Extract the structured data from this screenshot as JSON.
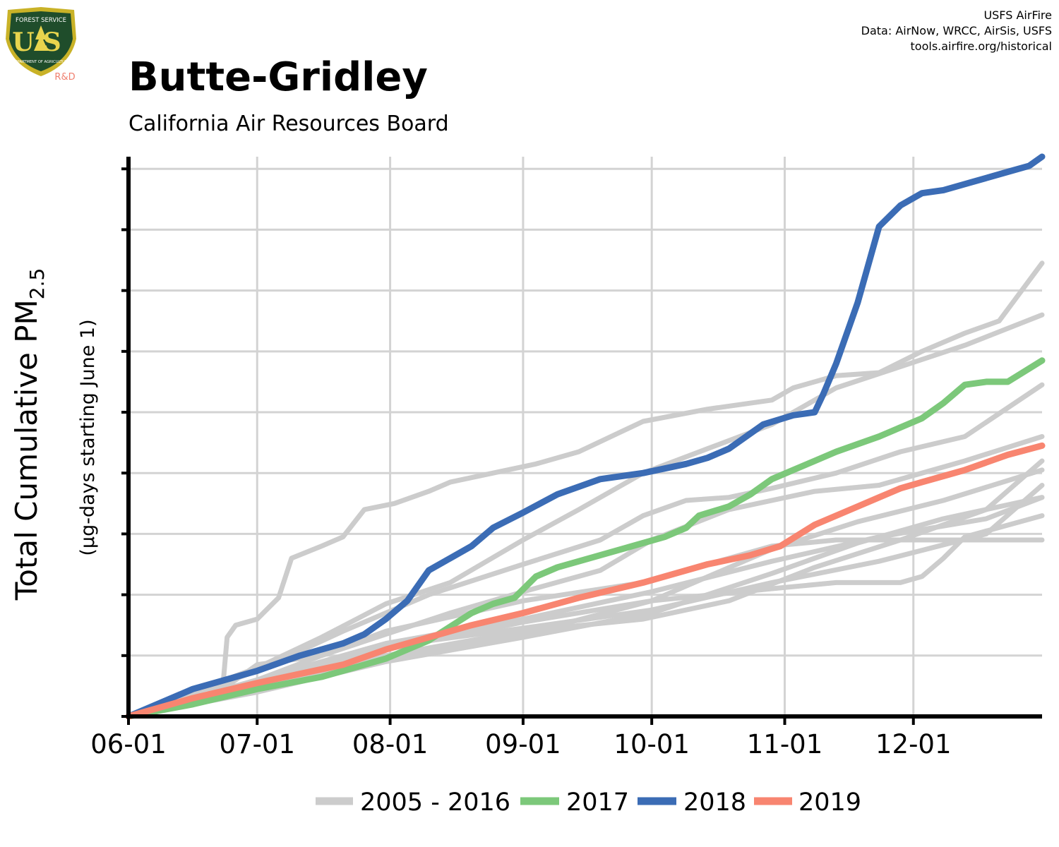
{
  "header": {
    "credits": [
      "USFS AirFire",
      "Data: AirNow, WRCC, AirSis, USFS",
      "tools.airfire.org/historical"
    ],
    "logo": {
      "arc_top": "FOREST SERVICE",
      "letters": "US",
      "arc_bottom": "DEPARTMENT OF AGRICULTURE",
      "rd": "R&D",
      "colors": {
        "shield": "#1f4d2b",
        "border": "#c9b227",
        "rd": "#f08070"
      }
    }
  },
  "chart_data": {
    "type": "line",
    "title": "Butte-Gridley",
    "subtitle": "California Air Resources Board",
    "ylabel_main": "Total Cumulative PM",
    "ylabel_sub": "2.5",
    "ylabel2": "(µg-days starting June 1)",
    "x_tick_labels": [
      "06-01",
      "07-01",
      "08-01",
      "09-01",
      "10-01",
      "11-01",
      "12-01"
    ],
    "x_ticks_day": [
      0,
      30,
      61,
      92,
      122,
      153,
      183
    ],
    "xlim": [
      0,
      213
    ],
    "ylim": [
      0,
      9.2
    ],
    "y_grid": [
      1,
      2,
      3,
      4,
      5,
      6,
      7,
      8,
      9
    ],
    "grid": true,
    "legend": {
      "placement": "bottom",
      "entries": [
        "2005 - 2016",
        "2017",
        "2018",
        "2019"
      ]
    },
    "series": [
      {
        "name": "2005 - 2016",
        "color": "#cccccc",
        "points": [
          [
            0,
            0
          ],
          [
            15,
            0.25
          ],
          [
            22,
            0.5
          ],
          [
            23,
            1.3
          ],
          [
            25,
            1.5
          ],
          [
            30,
            1.6
          ],
          [
            35,
            1.95
          ],
          [
            38,
            2.6
          ],
          [
            45,
            2.8
          ],
          [
            50,
            2.95
          ],
          [
            55,
            3.4
          ],
          [
            62,
            3.5
          ],
          [
            70,
            3.7
          ],
          [
            75,
            3.85
          ],
          [
            85,
            4.0
          ],
          [
            95,
            4.15
          ],
          [
            105,
            4.35
          ],
          [
            120,
            4.85
          ],
          [
            135,
            5.05
          ],
          [
            150,
            5.2
          ],
          [
            155,
            5.4
          ],
          [
            165,
            5.6
          ],
          [
            175,
            5.65
          ],
          [
            185,
            6.0
          ],
          [
            195,
            6.3
          ],
          [
            203,
            6.5
          ],
          [
            213,
            7.45
          ]
        ]
      },
      {
        "name": "2005 - 2016",
        "color": "#cccccc",
        "points": [
          [
            0,
            0
          ],
          [
            30,
            0.8
          ],
          [
            45,
            1.3
          ],
          [
            60,
            1.85
          ],
          [
            75,
            2.2
          ],
          [
            92,
            2.9
          ],
          [
            105,
            3.4
          ],
          [
            120,
            4.0
          ],
          [
            135,
            4.4
          ],
          [
            150,
            4.8
          ],
          [
            165,
            5.4
          ],
          [
            180,
            5.75
          ],
          [
            195,
            6.1
          ],
          [
            213,
            6.6
          ]
        ]
      },
      {
        "name": "2005 - 2016",
        "color": "#cccccc",
        "points": [
          [
            0,
            0
          ],
          [
            30,
            0.75
          ],
          [
            50,
            1.4
          ],
          [
            70,
            2.0
          ],
          [
            92,
            2.5
          ],
          [
            110,
            2.9
          ],
          [
            120,
            3.3
          ],
          [
            130,
            3.55
          ],
          [
            140,
            3.6
          ],
          [
            150,
            3.75
          ],
          [
            165,
            4.0
          ],
          [
            180,
            4.35
          ],
          [
            195,
            4.6
          ],
          [
            213,
            5.45
          ]
        ]
      },
      {
        "name": "2005 - 2016",
        "color": "#cccccc",
        "points": [
          [
            0,
            0
          ],
          [
            30,
            0.6
          ],
          [
            60,
            1.4
          ],
          [
            92,
            1.9
          ],
          [
            120,
            2.2
          ],
          [
            150,
            2.8
          ],
          [
            165,
            2.9
          ],
          [
            183,
            2.9
          ],
          [
            200,
            2.9
          ],
          [
            213,
            2.9
          ]
        ]
      },
      {
        "name": "2005 - 2016",
        "color": "#cccccc",
        "points": [
          [
            0,
            0
          ],
          [
            30,
            0.55
          ],
          [
            60,
            1.1
          ],
          [
            92,
            1.55
          ],
          [
            122,
            1.9
          ],
          [
            150,
            2.1
          ],
          [
            165,
            2.2
          ],
          [
            180,
            2.2
          ],
          [
            185,
            2.3
          ],
          [
            190,
            2.6
          ],
          [
            195,
            2.95
          ],
          [
            213,
            3.3
          ]
        ]
      },
      {
        "name": "2005 - 2016",
        "color": "#cccccc",
        "points": [
          [
            0,
            0
          ],
          [
            30,
            0.5
          ],
          [
            60,
            1.0
          ],
          [
            92,
            1.4
          ],
          [
            120,
            1.6
          ],
          [
            140,
            1.9
          ],
          [
            160,
            2.45
          ],
          [
            180,
            2.9
          ],
          [
            200,
            3.4
          ],
          [
            213,
            4.2
          ]
        ]
      },
      {
        "name": "2005 - 2016",
        "color": "#cccccc",
        "points": [
          [
            0,
            0
          ],
          [
            30,
            0.4
          ],
          [
            60,
            0.9
          ],
          [
            92,
            1.3
          ],
          [
            122,
            1.7
          ],
          [
            150,
            2.35
          ],
          [
            170,
            2.85
          ],
          [
            190,
            3.25
          ],
          [
            213,
            3.6
          ]
        ]
      },
      {
        "name": "2005 - 2016",
        "color": "#cccccc",
        "points": [
          [
            0,
            0
          ],
          [
            30,
            0.45
          ],
          [
            60,
            0.95
          ],
          [
            92,
            1.35
          ],
          [
            122,
            1.9
          ],
          [
            150,
            2.75
          ],
          [
            170,
            3.2
          ],
          [
            190,
            3.55
          ],
          [
            213,
            4.05
          ]
        ]
      },
      {
        "name": "2005 - 2016",
        "color": "#cccccc",
        "points": [
          [
            0,
            0
          ],
          [
            20,
            0.35
          ],
          [
            30,
            0.85
          ],
          [
            45,
            1.0
          ],
          [
            60,
            1.35
          ],
          [
            75,
            1.7
          ],
          [
            92,
            2.05
          ],
          [
            110,
            2.4
          ],
          [
            122,
            2.9
          ],
          [
            140,
            3.4
          ],
          [
            160,
            3.7
          ],
          [
            175,
            3.8
          ],
          [
            195,
            4.2
          ],
          [
            213,
            4.6
          ]
        ]
      },
      {
        "name": "2005 - 2016",
        "color": "#cccccc",
        "points": [
          [
            0,
            0
          ],
          [
            30,
            0.55
          ],
          [
            60,
            1.15
          ],
          [
            92,
            1.45
          ],
          [
            122,
            1.75
          ],
          [
            150,
            2.2
          ],
          [
            175,
            2.55
          ],
          [
            200,
            3.0
          ],
          [
            213,
            3.8
          ]
        ]
      },
      {
        "name": "2005 - 2016",
        "color": "#cccccc",
        "points": [
          [
            0,
            0
          ],
          [
            30,
            0.6
          ],
          [
            60,
            1.2
          ],
          [
            92,
            1.6
          ],
          [
            122,
            2.05
          ],
          [
            150,
            2.55
          ],
          [
            175,
            2.95
          ],
          [
            200,
            3.25
          ],
          [
            213,
            3.6
          ]
        ]
      },
      {
        "name": "2017",
        "color": "#7cc87a",
        "points": [
          [
            0,
            0
          ],
          [
            15,
            0.2
          ],
          [
            30,
            0.45
          ],
          [
            45,
            0.65
          ],
          [
            60,
            0.95
          ],
          [
            70,
            1.25
          ],
          [
            80,
            1.7
          ],
          [
            85,
            1.85
          ],
          [
            90,
            1.95
          ],
          [
            95,
            2.3
          ],
          [
            100,
            2.45
          ],
          [
            105,
            2.55
          ],
          [
            110,
            2.65
          ],
          [
            120,
            2.85
          ],
          [
            125,
            2.95
          ],
          [
            130,
            3.1
          ],
          [
            133,
            3.3
          ],
          [
            140,
            3.45
          ],
          [
            145,
            3.65
          ],
          [
            150,
            3.9
          ],
          [
            155,
            4.05
          ],
          [
            160,
            4.2
          ],
          [
            165,
            4.35
          ],
          [
            175,
            4.6
          ],
          [
            185,
            4.9
          ],
          [
            190,
            5.15
          ],
          [
            195,
            5.45
          ],
          [
            200,
            5.5
          ],
          [
            205,
            5.5
          ],
          [
            213,
            5.85
          ]
        ]
      },
      {
        "name": "2018",
        "color": "#3b6cb5",
        "points": [
          [
            0,
            0
          ],
          [
            15,
            0.45
          ],
          [
            30,
            0.75
          ],
          [
            40,
            1.0
          ],
          [
            50,
            1.2
          ],
          [
            55,
            1.35
          ],
          [
            60,
            1.6
          ],
          [
            65,
            1.9
          ],
          [
            70,
            2.4
          ],
          [
            75,
            2.6
          ],
          [
            80,
            2.8
          ],
          [
            85,
            3.1
          ],
          [
            92,
            3.35
          ],
          [
            100,
            3.65
          ],
          [
            110,
            3.9
          ],
          [
            120,
            4.0
          ],
          [
            130,
            4.15
          ],
          [
            135,
            4.25
          ],
          [
            140,
            4.4
          ],
          [
            148,
            4.8
          ],
          [
            155,
            4.95
          ],
          [
            160,
            5.0
          ],
          [
            162,
            5.3
          ],
          [
            165,
            5.8
          ],
          [
            170,
            6.8
          ],
          [
            175,
            8.05
          ],
          [
            180,
            8.4
          ],
          [
            185,
            8.6
          ],
          [
            190,
            8.65
          ],
          [
            195,
            8.75
          ],
          [
            200,
            8.85
          ],
          [
            205,
            8.95
          ],
          [
            210,
            9.05
          ],
          [
            213,
            9.2
          ]
        ]
      },
      {
        "name": "2019",
        "color": "#f88570",
        "points": [
          [
            0,
            0
          ],
          [
            15,
            0.3
          ],
          [
            30,
            0.55
          ],
          [
            40,
            0.7
          ],
          [
            50,
            0.85
          ],
          [
            60,
            1.1
          ],
          [
            70,
            1.3
          ],
          [
            80,
            1.5
          ],
          [
            92,
            1.7
          ],
          [
            105,
            1.95
          ],
          [
            120,
            2.2
          ],
          [
            135,
            2.5
          ],
          [
            145,
            2.65
          ],
          [
            152,
            2.8
          ],
          [
            160,
            3.15
          ],
          [
            170,
            3.45
          ],
          [
            175,
            3.6
          ],
          [
            180,
            3.75
          ],
          [
            185,
            3.85
          ],
          [
            190,
            3.95
          ],
          [
            195,
            4.05
          ],
          [
            205,
            4.3
          ],
          [
            213,
            4.45
          ]
        ]
      }
    ]
  }
}
